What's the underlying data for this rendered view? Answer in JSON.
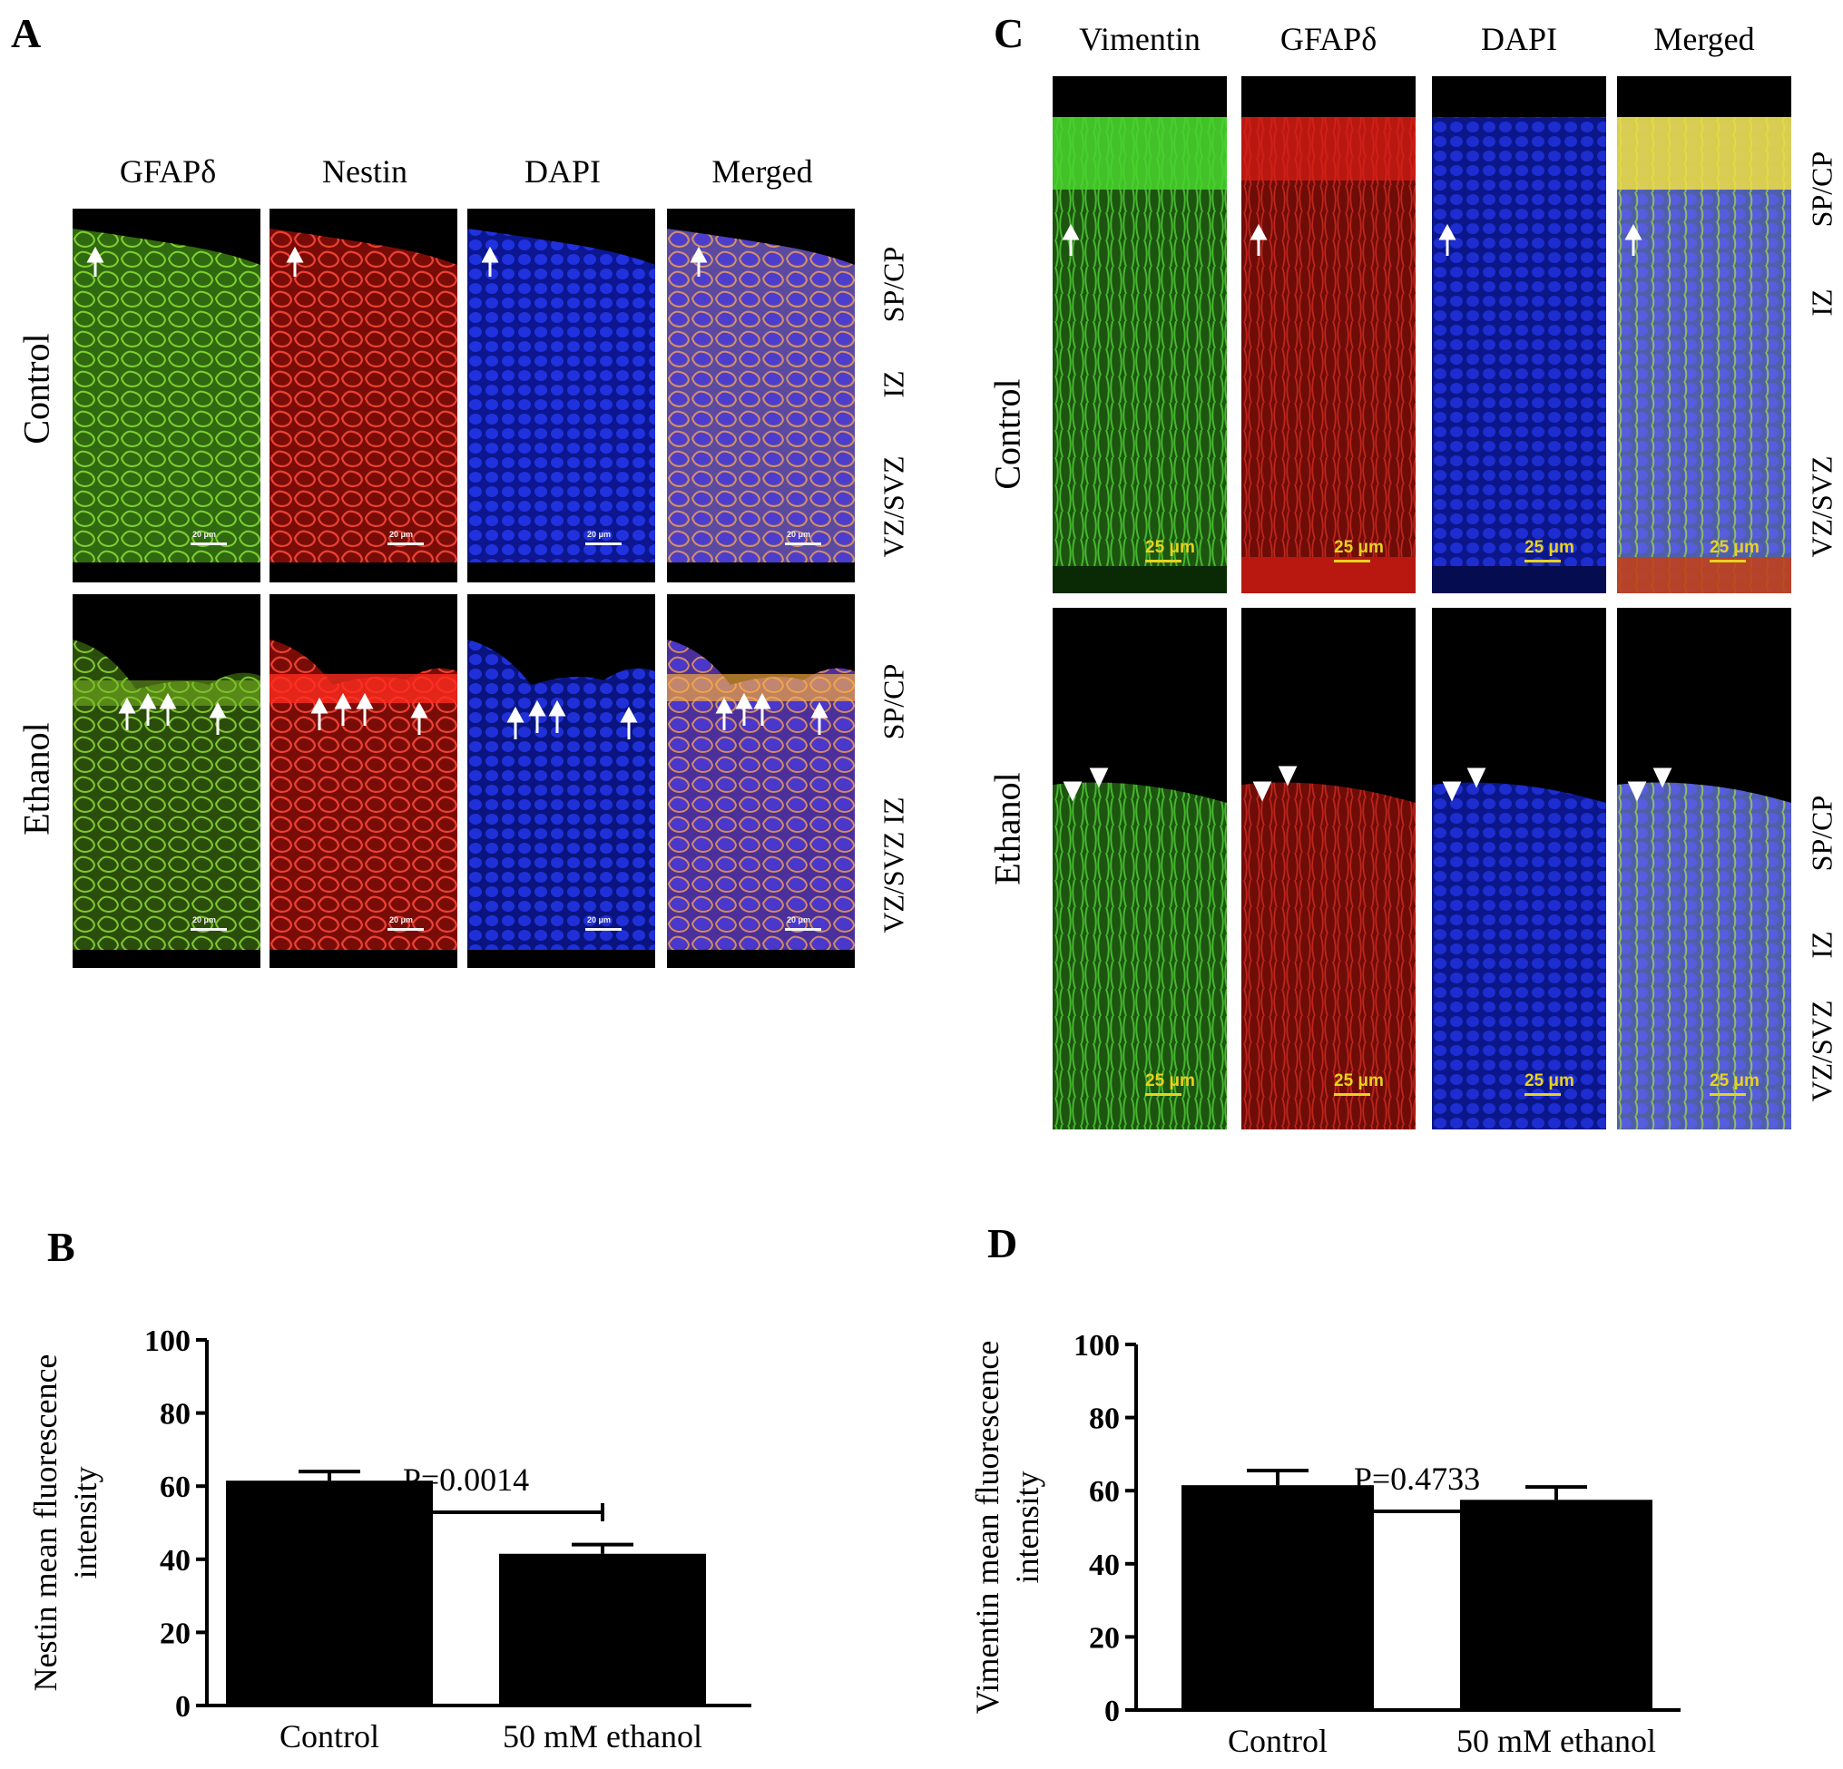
{
  "panels": {
    "A": {
      "letter": "A",
      "columns": [
        "GFAPδ",
        "Nestin",
        "DAPI",
        "Merged"
      ],
      "rows": [
        "Control",
        "Ethanol"
      ],
      "zones_control": [
        "SP/CP",
        "IZ",
        "VZ/SVZ"
      ],
      "zones_ethanol": [
        "SP/CP",
        "VZ/SVZ IZ"
      ],
      "scale_label": "20 μm",
      "colors": {
        "gfap": "#7fd11b",
        "nestin": "#e8231f",
        "dapi": "#1e2ee0"
      }
    },
    "C": {
      "letter": "C",
      "columns": [
        "Vimentin",
        "GFAPδ",
        "DAPI",
        "Merged"
      ],
      "rows": [
        "Control",
        "Ethanol"
      ],
      "zones_control": [
        "SP/CP",
        "IZ",
        "VZ/SVZ"
      ],
      "zones_ethanol": [
        "SP/CP",
        "IZ",
        "VZ/SVZ"
      ],
      "scale_label": "25 μm",
      "colors": {
        "vimentin": "#3fd63a",
        "gfap": "#e8231f",
        "dapi": "#1e2ee0",
        "scale": "#e8d21f"
      }
    },
    "B": {
      "letter": "B"
    },
    "D": {
      "letter": "D"
    }
  },
  "chart_data": [
    {
      "panel": "B",
      "type": "bar",
      "categories": [
        "Control",
        "50 mM ethanol"
      ],
      "values": [
        61.5,
        41.5
      ],
      "errors": [
        2.5,
        2.5
      ],
      "ylabel": "Nestin mean fluorescence intensity",
      "ylim": [
        0,
        100
      ],
      "yticks": [
        0,
        20,
        40,
        60,
        80,
        100
      ],
      "annotation": "P=0.0014",
      "bar_color": "#000000",
      "grid": false
    },
    {
      "panel": "D",
      "type": "bar",
      "categories": [
        "Control",
        "50 mM ethanol"
      ],
      "values": [
        61.5,
        57.5
      ],
      "errors": [
        4,
        3.5
      ],
      "ylabel": "Vimentin mean fluorescence intensity",
      "ylim": [
        0,
        100
      ],
      "yticks": [
        0,
        20,
        40,
        60,
        80,
        100
      ],
      "annotation": "P=0.4733",
      "bar_color": "#000000",
      "grid": false
    }
  ]
}
